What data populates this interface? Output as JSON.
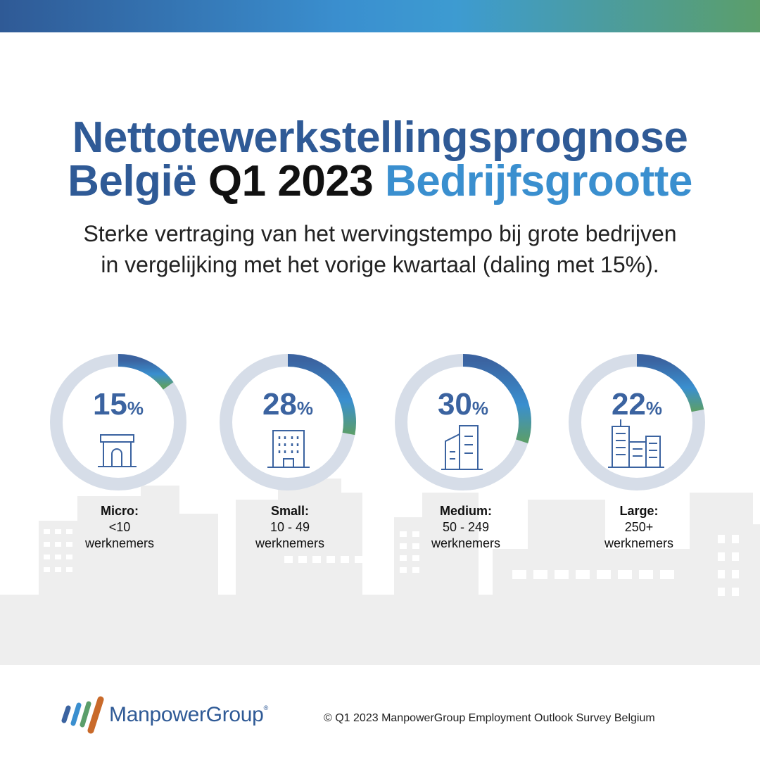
{
  "title": {
    "line1": "Nettotewerkstellingsprognose",
    "line2_part1": "België",
    "line2_part2": "Q1 2023",
    "line2_part3": "Bedrijfsgrootte"
  },
  "subtitle": {
    "line1": "Sterke vertraging van het wervingstempo bij grote bedrijven",
    "line2": "in vergelijking met het vorige kwartaal (daling met 15%)."
  },
  "chart_data": {
    "type": "donut",
    "categories": [
      "Micro:",
      "Small:",
      "Medium:",
      "Large:"
    ],
    "ranges": [
      "<10",
      "10 - 49",
      "50 - 249",
      "250+"
    ],
    "unit_label": "werknemers",
    "values": [
      15,
      28,
      30,
      22
    ],
    "value_suffix": "%",
    "icons": [
      "shop-icon",
      "office-building-icon",
      "towers-icon",
      "city-buildings-icon"
    ],
    "colors": {
      "track": "#d6dde8",
      "arc_start": "#3b63a0",
      "arc_mid": "#3a8fcf",
      "arc_end": "#5b9e6a"
    }
  },
  "footer": {
    "logo_text": "ManpowerGroup",
    "logo_mark": "®",
    "copyright": "© Q1 2023 ManpowerGroup Employment Outlook Survey Belgium"
  },
  "colors": {
    "brand_dark": "#2f5a96",
    "brand_light": "#3a8fcf",
    "brand_green": "#5b9e6a",
    "skyline": "#eeeeee"
  }
}
